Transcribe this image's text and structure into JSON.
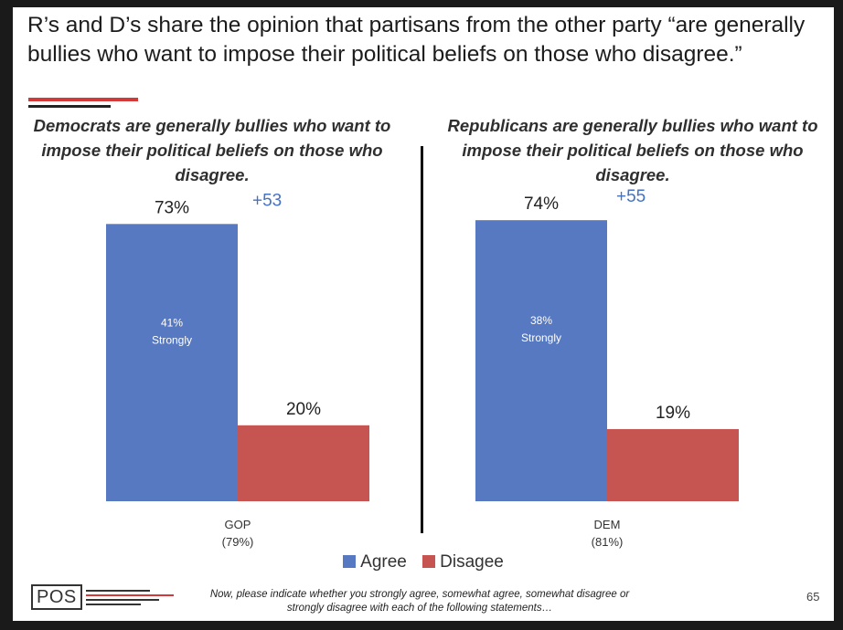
{
  "slide": {
    "title": "R’s and D’s share the opinion that partisans from the other party “are generally bullies who want to impose their political beliefs on those who disagree.”",
    "footnote": "Now, please indicate whether you strongly agree, somewhat agree, somewhat disagree or strongly disagree with each of the following statements…",
    "page_number": "65",
    "logo_text": "POS",
    "colors": {
      "agree": "#5779c1",
      "disagree": "#c65551",
      "margin": "#4472c4",
      "accent": "#d23a3a"
    }
  },
  "legend": [
    {
      "label": "Agree",
      "color": "#5779c1"
    },
    {
      "label": "Disagee",
      "color": "#c65551"
    }
  ],
  "chart_data": [
    {
      "type": "bar",
      "title": "Democrats are generally bullies who want to impose their political beliefs on those who disagree.",
      "category": "GOP",
      "category_sub": "(79%)",
      "series": [
        {
          "name": "Agree",
          "value": 73,
          "label": "73%",
          "inner_value": "41%",
          "inner_text": "Strongly"
        },
        {
          "name": "Disagee",
          "value": 20,
          "label": "20%"
        }
      ],
      "net": "+53",
      "ylim": [
        0,
        100
      ]
    },
    {
      "type": "bar",
      "title": "Republicans are generally bullies who want to impose their political beliefs on those who disagree.",
      "category": "DEM",
      "category_sub": "(81%)",
      "series": [
        {
          "name": "Agree",
          "value": 74,
          "label": "74%",
          "inner_value": "38%",
          "inner_text": "Strongly"
        },
        {
          "name": "Disagee",
          "value": 19,
          "label": "19%"
        }
      ],
      "net": "+55",
      "ylim": [
        0,
        100
      ]
    }
  ]
}
